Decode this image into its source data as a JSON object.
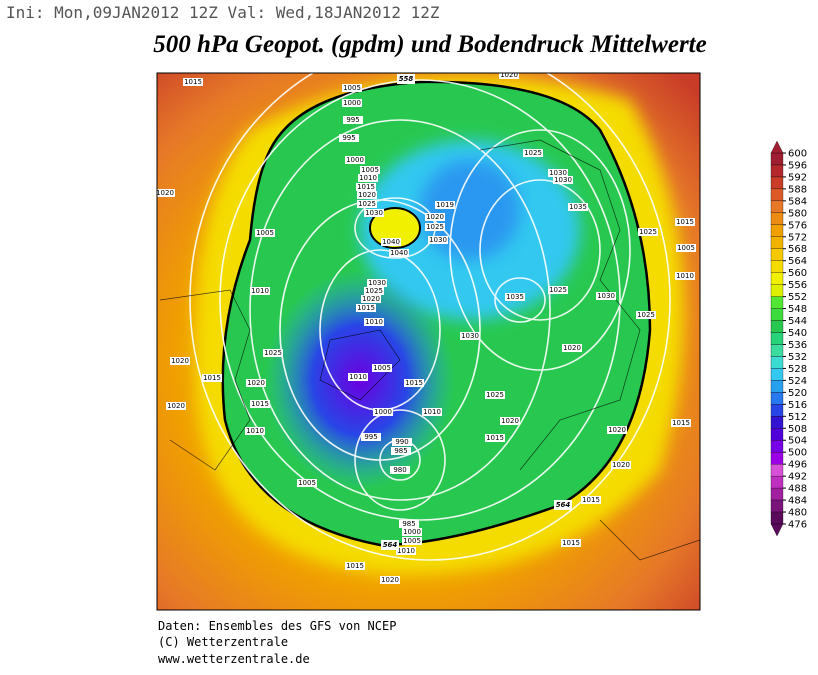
{
  "header": {
    "run_info": "Ini: Mon,09JAN2012 12Z Val: Wed,18JAN2012 12Z",
    "title": "500 hPa Geopot. (gpdm) und Bodendruck Mittelwerte"
  },
  "map": {
    "contour_labels": [
      "1015",
      "1020",
      "1005",
      "1000",
      "995",
      "995",
      "1000",
      "1005",
      "1010",
      "1015",
      "1020",
      "1025",
      "1030",
      "1040",
      "1040",
      "1019",
      "1020",
      "1025",
      "1030",
      "1025",
      "1030",
      "1030",
      "1035",
      "1020",
      "1005",
      "1025",
      "1015",
      "1005",
      "1010",
      "1025",
      "1030",
      "1025",
      "1035",
      "1030",
      "1020",
      "1010",
      "1025",
      "1020",
      "1015",
      "1020",
      "1030",
      "1025",
      "1020",
      "1015",
      "1010",
      "1005",
      "1010",
      "1015",
      "1015",
      "1020",
      "1010",
      "1000",
      "1010",
      "995",
      "990",
      "985",
      "980",
      "1025",
      "1020",
      "1015",
      "1020",
      "1015",
      "1020",
      "1005",
      "985",
      "1000",
      "1005",
      "1010",
      "1015",
      "1015",
      "1015",
      "1020"
    ],
    "height_labels": [
      "558",
      "564",
      "564"
    ]
  },
  "colorbar": {
    "ticks": [
      600,
      596,
      592,
      588,
      584,
      580,
      576,
      572,
      568,
      564,
      560,
      556,
      552,
      548,
      544,
      540,
      536,
      532,
      528,
      524,
      520,
      516,
      512,
      508,
      504,
      500,
      496,
      492,
      488,
      484,
      480,
      476
    ],
    "colors": [
      "#a01e32",
      "#b4282d",
      "#c83c28",
      "#dc5a28",
      "#e67828",
      "#ec8c14",
      "#f0a000",
      "#f0b400",
      "#f5c800",
      "#f5dc00",
      "#f0f000",
      "#dcf000",
      "#50e632",
      "#3cdc3c",
      "#28c850",
      "#28d278",
      "#3cdca0",
      "#3cdcd2",
      "#32c8f0",
      "#28a0f0",
      "#2878f0",
      "#2846e6",
      "#3214d2",
      "#5000d8",
      "#7800e6",
      "#9b00e6",
      "#d850d8",
      "#c030c0",
      "#a020a0",
      "#7a147a",
      "#5a0a5a"
    ]
  },
  "footer": {
    "lines": [
      "Daten: Ensembles des GFS von NCEP",
      "(C) Wetterzentrale",
      "www.wetterzentrale.de"
    ]
  }
}
